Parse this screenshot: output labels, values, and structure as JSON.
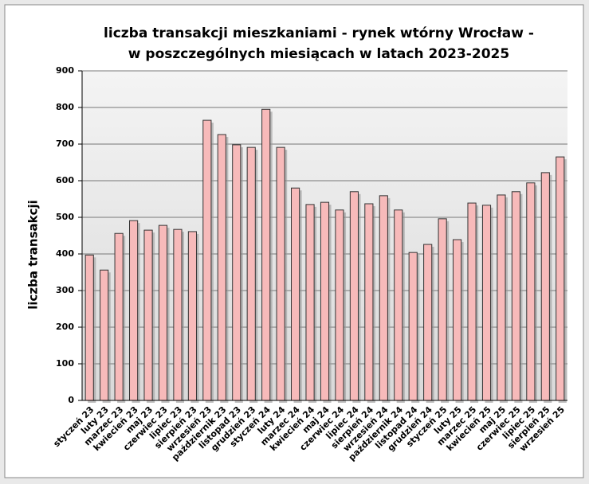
{
  "chart_data": {
    "type": "bar",
    "title": [
      "liczba transakcji mieszkaniami - rynek wtórny Wrocław -",
      "w poszczególnych miesiącach w latach 2023-2025"
    ],
    "y_label": "liczba transakcji",
    "categories": [
      "styczeń 23",
      "luty 23",
      "marzec 23",
      "kwiecień 23",
      "maj 23",
      "czerwiec 23",
      "lipiec 23",
      "sierpień 23",
      "wrzesień 23",
      "październik 23",
      "listopad 23",
      "grudzień 23",
      "styczeń 24",
      "luty 24",
      "marzec 24",
      "kwiecień 24",
      "maj 24",
      "czerwiec 24",
      "lipiec 24",
      "sierpień 24",
      "wrzesień 24",
      "październik 24",
      "listopad 24",
      "grudzień 24",
      "styczeń 25",
      "luty 25",
      "marzec 25",
      "kwiecień 25",
      "maj 25",
      "czerwiec 25",
      "lipiec 25",
      "sierpień 25",
      "wrzesień 25"
    ],
    "values": [
      397,
      356,
      456,
      491,
      465,
      478,
      467,
      461,
      765,
      726,
      698,
      691,
      795,
      691,
      580,
      535,
      541,
      520,
      570,
      537,
      559,
      520,
      404,
      426,
      496,
      439,
      539,
      533,
      561,
      570,
      594,
      622,
      665
    ],
    "color": "#f7baba",
    "ylim": [
      0,
      900
    ],
    "yticks": [
      0,
      100,
      200,
      300,
      400,
      500,
      600,
      700,
      800,
      900
    ],
    "grid": true
  }
}
